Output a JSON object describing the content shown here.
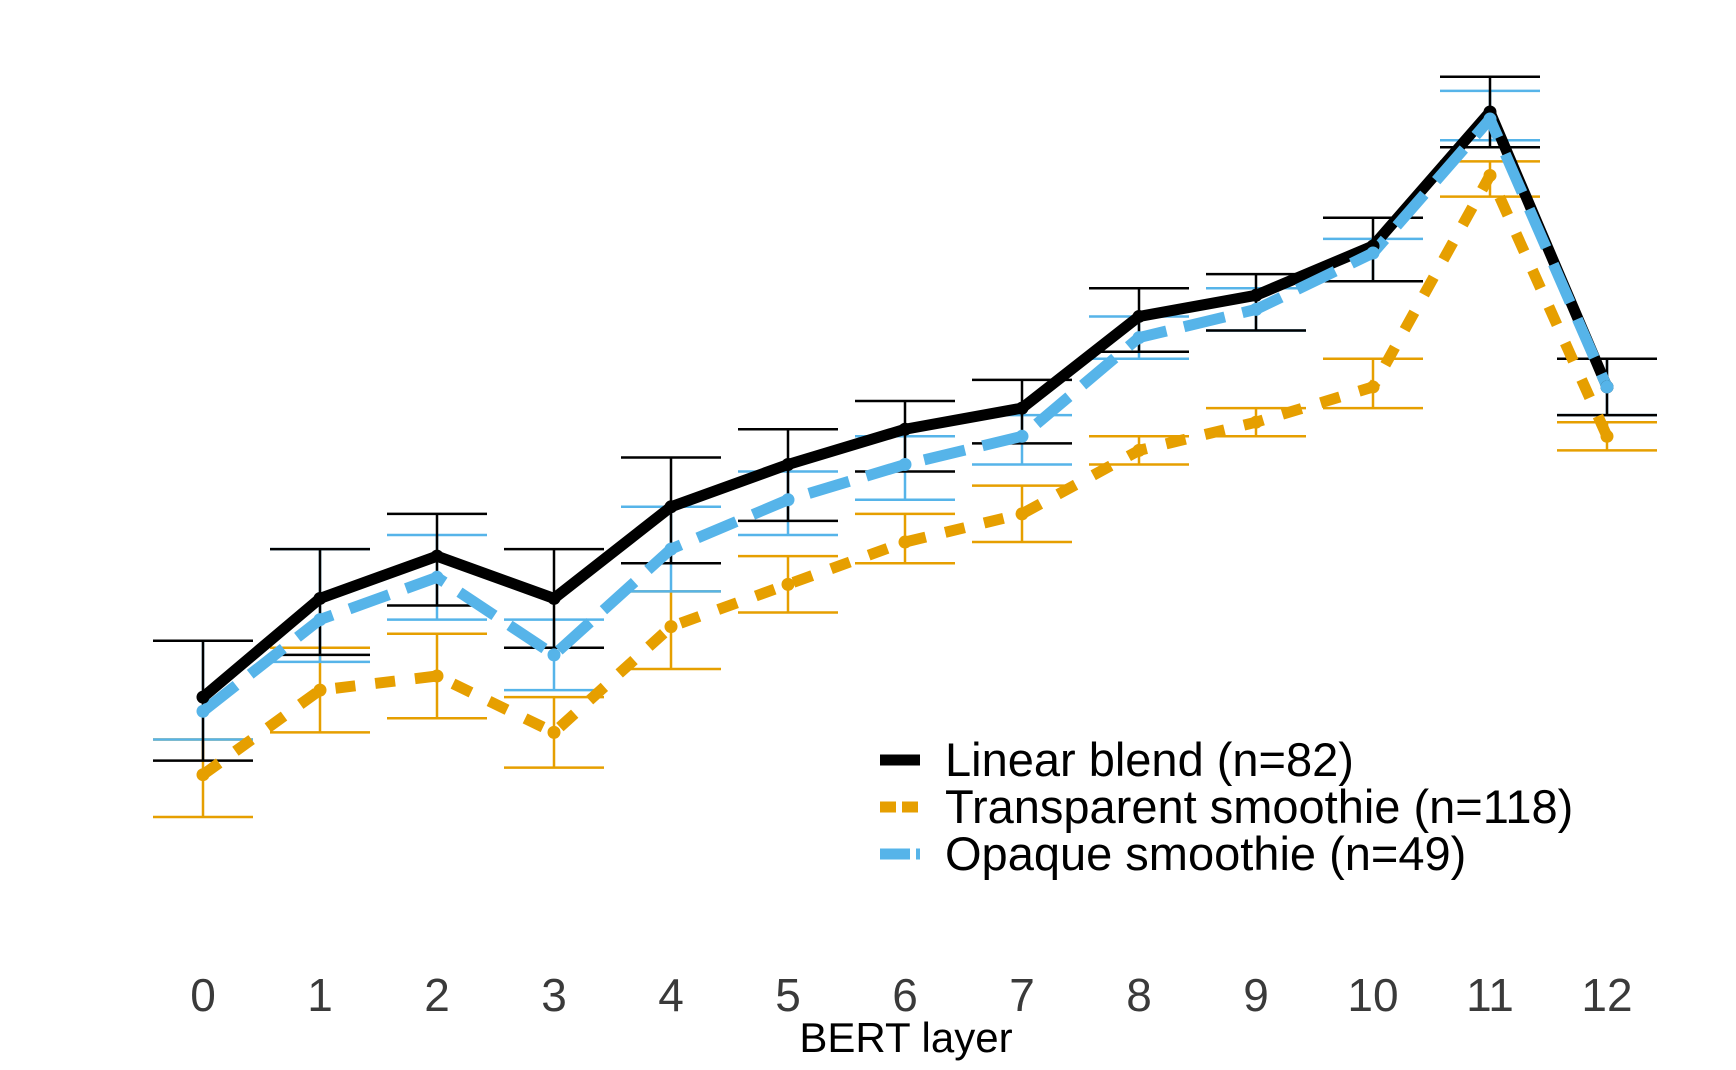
{
  "chart_data": {
    "type": "line",
    "title": "",
    "xlabel": "BERT layer",
    "ylabel": "",
    "x": [
      0,
      1,
      2,
      3,
      4,
      5,
      6,
      7,
      8,
      9,
      10,
      11,
      12
    ],
    "ylim": [
      0,
      100
    ],
    "grid": false,
    "legend_position": "bottom-right",
    "series": [
      {
        "name": "Linear blend (n=82)",
        "color": "#000000",
        "dash": "solid",
        "values": [
          37,
          51,
          57,
          51,
          64,
          70,
          75,
          78,
          91,
          94,
          101,
          120,
          81
        ],
        "lower": [
          28,
          43,
          50,
          44,
          56,
          62,
          69,
          73,
          86,
          89,
          96,
          115,
          77
        ],
        "upper": [
          45,
          58,
          63,
          58,
          71,
          75,
          79,
          82,
          95,
          97,
          105,
          125,
          85
        ]
      },
      {
        "name": "Transparent smoothie (n=118)",
        "color": "#E69F00",
        "dash": "dotted",
        "values": [
          26,
          38,
          40,
          32,
          47,
          53,
          59,
          63,
          72,
          76,
          81,
          111,
          74
        ],
        "lower": [
          20,
          32,
          34,
          27,
          41,
          49,
          56,
          59,
          70,
          74,
          78,
          108,
          72
        ],
        "upper": [
          31,
          44,
          46,
          37,
          52,
          57,
          63,
          67,
          74,
          78,
          85,
          113,
          76
        ]
      },
      {
        "name": "Opaque smoothie (n=49)",
        "color": "#56B4E9",
        "dash": "dashed",
        "values": [
          35,
          48,
          54,
          43,
          58,
          65,
          70,
          74,
          88,
          92,
          100,
          119,
          81
        ],
        "lower": [
          31,
          42,
          48,
          38,
          52,
          60,
          65,
          70,
          85,
          89,
          96,
          116,
          77
        ],
        "upper": [
          45,
          58,
          60,
          48,
          64,
          69,
          74,
          77,
          91,
          95,
          102,
          123,
          85
        ]
      }
    ]
  }
}
